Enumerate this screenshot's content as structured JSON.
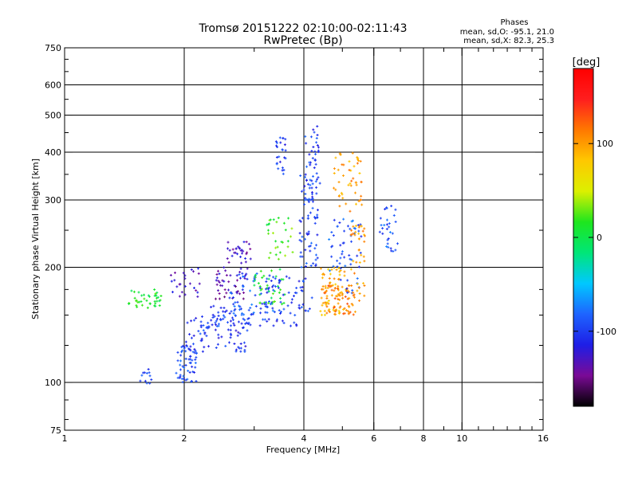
{
  "chart_data": {
    "type": "scatter",
    "title": "Tromsø 20151222 02:10:00-02:11:43",
    "subtitle": "RwPretec (Bp)",
    "xlabel": "Frequency [MHz]",
    "ylabel": "Stationary phase Virtual Height [km]",
    "x_scale": "log",
    "y_scale": "log",
    "xlim": [
      1,
      16
    ],
    "ylim": [
      75,
      750
    ],
    "x_ticks": [
      {
        "value": 1,
        "label": "1"
      },
      {
        "value": 2,
        "label": "2"
      },
      {
        "value": 4,
        "label": "4"
      },
      {
        "value": 6,
        "label": "6"
      },
      {
        "value": 8,
        "label": "8"
      },
      {
        "value": 10,
        "label": "10"
      },
      {
        "value": 16,
        "label": "16"
      }
    ],
    "y_ticks": [
      {
        "value": 75,
        "label": "75"
      },
      {
        "value": 100,
        "label": "100"
      },
      {
        "value": 200,
        "label": "200"
      },
      {
        "value": 300,
        "label": "300"
      },
      {
        "value": 400,
        "label": "400"
      },
      {
        "value": 500,
        "label": "500"
      },
      {
        "value": 600,
        "label": "600"
      },
      {
        "value": 750,
        "label": "750"
      }
    ],
    "x_gridlines": [
      2,
      4,
      6,
      8,
      10
    ],
    "y_gridlines": [
      100,
      200,
      300,
      400,
      500,
      600
    ],
    "grid": true,
    "legend": {
      "title": "Phases",
      "lines": [
        "mean, sd,O: -95.1, 21.0",
        "mean, sd,X:  82.3, 25.3"
      ]
    },
    "colorbar": {
      "label": "[deg]",
      "range": [
        -180,
        180
      ],
      "ticks": [
        {
          "value": 100,
          "label": "100"
        },
        {
          "value": 0,
          "label": "0"
        },
        {
          "value": -100,
          "label": "-100"
        }
      ],
      "colormap": [
        "#000000",
        "#7a0a96",
        "#1e1ee6",
        "#1e64ff",
        "#00c8ff",
        "#00e678",
        "#1ee61e",
        "#dcf000",
        "#ffc800",
        "#ff7800",
        "#ff1e1e",
        "#ff0000"
      ]
    },
    "clusters": [
      {
        "x0": 1.45,
        "x1": 1.75,
        "y0": 155,
        "y1": 175,
        "phase": 10,
        "n": 40
      },
      {
        "x0": 1.55,
        "x1": 1.68,
        "y0": 98,
        "y1": 110,
        "phase": -100,
        "n": 12
      },
      {
        "x0": 1.9,
        "x1": 2.15,
        "y0": 100,
        "y1": 125,
        "phase": -95,
        "n": 50
      },
      {
        "x0": 2.0,
        "x1": 2.3,
        "y0": 120,
        "y1": 150,
        "phase": -100,
        "n": 30
      },
      {
        "x0": 1.85,
        "x1": 2.2,
        "y0": 165,
        "y1": 200,
        "phase": -130,
        "n": 25
      },
      {
        "x0": 2.2,
        "x1": 2.9,
        "y0": 120,
        "y1": 150,
        "phase": -105,
        "n": 60
      },
      {
        "x0": 2.3,
        "x1": 3.0,
        "y0": 140,
        "y1": 160,
        "phase": -95,
        "n": 40
      },
      {
        "x0": 2.4,
        "x1": 2.9,
        "y0": 165,
        "y1": 200,
        "phase": -135,
        "n": 45
      },
      {
        "x0": 2.55,
        "x1": 2.95,
        "y0": 205,
        "y1": 235,
        "phase": -130,
        "n": 30
      },
      {
        "x0": 2.6,
        "x1": 3.4,
        "y0": 140,
        "y1": 195,
        "phase": -90,
        "n": 55
      },
      {
        "x0": 3.0,
        "x1": 3.6,
        "y0": 160,
        "y1": 200,
        "phase": 10,
        "n": 40
      },
      {
        "x0": 3.2,
        "x1": 3.75,
        "y0": 210,
        "y1": 270,
        "phase": 20,
        "n": 30
      },
      {
        "x0": 3.1,
        "x1": 4.2,
        "y0": 140,
        "y1": 190,
        "phase": -100,
        "n": 70
      },
      {
        "x0": 3.4,
        "x1": 3.6,
        "y0": 350,
        "y1": 440,
        "phase": -100,
        "n": 25
      },
      {
        "x0": 3.9,
        "x1": 4.35,
        "y0": 200,
        "y1": 350,
        "phase": -95,
        "n": 70
      },
      {
        "x0": 4.0,
        "x1": 4.4,
        "y0": 300,
        "y1": 470,
        "phase": -100,
        "n": 40
      },
      {
        "x0": 4.4,
        "x1": 5.1,
        "y0": 150,
        "y1": 200,
        "phase": 90,
        "n": 70
      },
      {
        "x0": 4.5,
        "x1": 5.4,
        "y0": 150,
        "y1": 180,
        "phase": 110,
        "n": 60
      },
      {
        "x0": 4.7,
        "x1": 5.6,
        "y0": 280,
        "y1": 400,
        "phase": 100,
        "n": 50
      },
      {
        "x0": 4.6,
        "x1": 5.6,
        "y0": 170,
        "y1": 270,
        "phase": -90,
        "n": 55
      },
      {
        "x0": 5.2,
        "x1": 5.7,
        "y0": 160,
        "y1": 260,
        "phase": 100,
        "n": 40
      },
      {
        "x0": 6.2,
        "x1": 6.9,
        "y0": 220,
        "y1": 290,
        "phase": -90,
        "n": 30
      }
    ]
  }
}
